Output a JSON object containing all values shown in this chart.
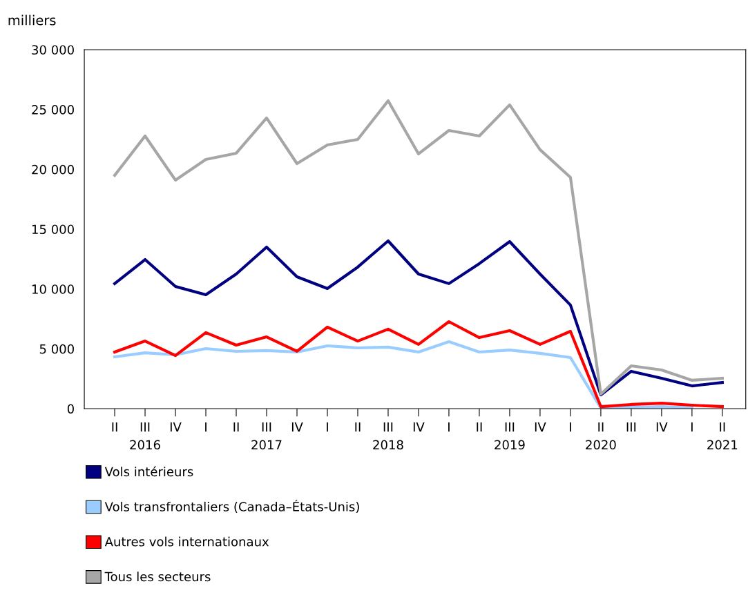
{
  "chart_data": {
    "type": "line",
    "ylabel": "milliers",
    "categories": [
      "II",
      "III\n2016",
      "IV",
      "I",
      "II",
      "III\n2017",
      "IV",
      "I",
      "II",
      "III\n2018",
      "IV",
      "I",
      "II",
      "III\n2019",
      "IV",
      "I",
      "II\n2020",
      "III",
      "IV",
      "I",
      "II\n2021"
    ],
    "series": [
      {
        "name": "Vols intérieurs",
        "color": "#000080",
        "values": [
          10450,
          12460,
          10210,
          9520,
          11250,
          13500,
          11020,
          10040,
          11830,
          14020,
          11250,
          10450,
          12120,
          13960,
          11250,
          8660,
          1150,
          3120,
          2540,
          1900,
          2190
        ]
      },
      {
        "name": "Vols transfrontaliers (Canada–États-Unis)",
        "color": "#99ccff",
        "values": [
          4330,
          4670,
          4500,
          5020,
          4790,
          4850,
          4730,
          5250,
          5080,
          5140,
          4730,
          5600,
          4730,
          4900,
          4620,
          4270,
          50,
          120,
          170,
          60,
          null
        ]
      },
      {
        "name": "Autres vols internationaux",
        "color": "#ff0000",
        "values": [
          4730,
          5650,
          4440,
          6350,
          5310,
          6000,
          4790,
          6810,
          5650,
          6640,
          5370,
          7270,
          5940,
          6520,
          5370,
          6460,
          170,
          350,
          460,
          290,
          170
        ]
      },
      {
        "name": "Tous les secteurs",
        "color": "#a6a6a6",
        "values": [
          19500,
          22790,
          19100,
          20830,
          21350,
          24290,
          20480,
          22040,
          22500,
          25730,
          21290,
          23250,
          22790,
          25390,
          21640,
          19330,
          1210,
          3580,
          3230,
          2370,
          2540
        ]
      }
    ],
    "ylim": [
      0,
      30000
    ],
    "yticks": [
      0,
      {
        "value": 5000,
        "label": "5 000"
      },
      {
        "value": 10000,
        "label": "10 000"
      },
      {
        "value": 15000,
        "label": "15 000"
      },
      {
        "value": 20000,
        "label": "20 000"
      },
      {
        "value": 25000,
        "label": "25 000"
      },
      {
        "value": 30000,
        "label": "30 000"
      }
    ],
    "grid": false,
    "legend": "bottom",
    "marker": "none",
    "line_style": "solid"
  }
}
